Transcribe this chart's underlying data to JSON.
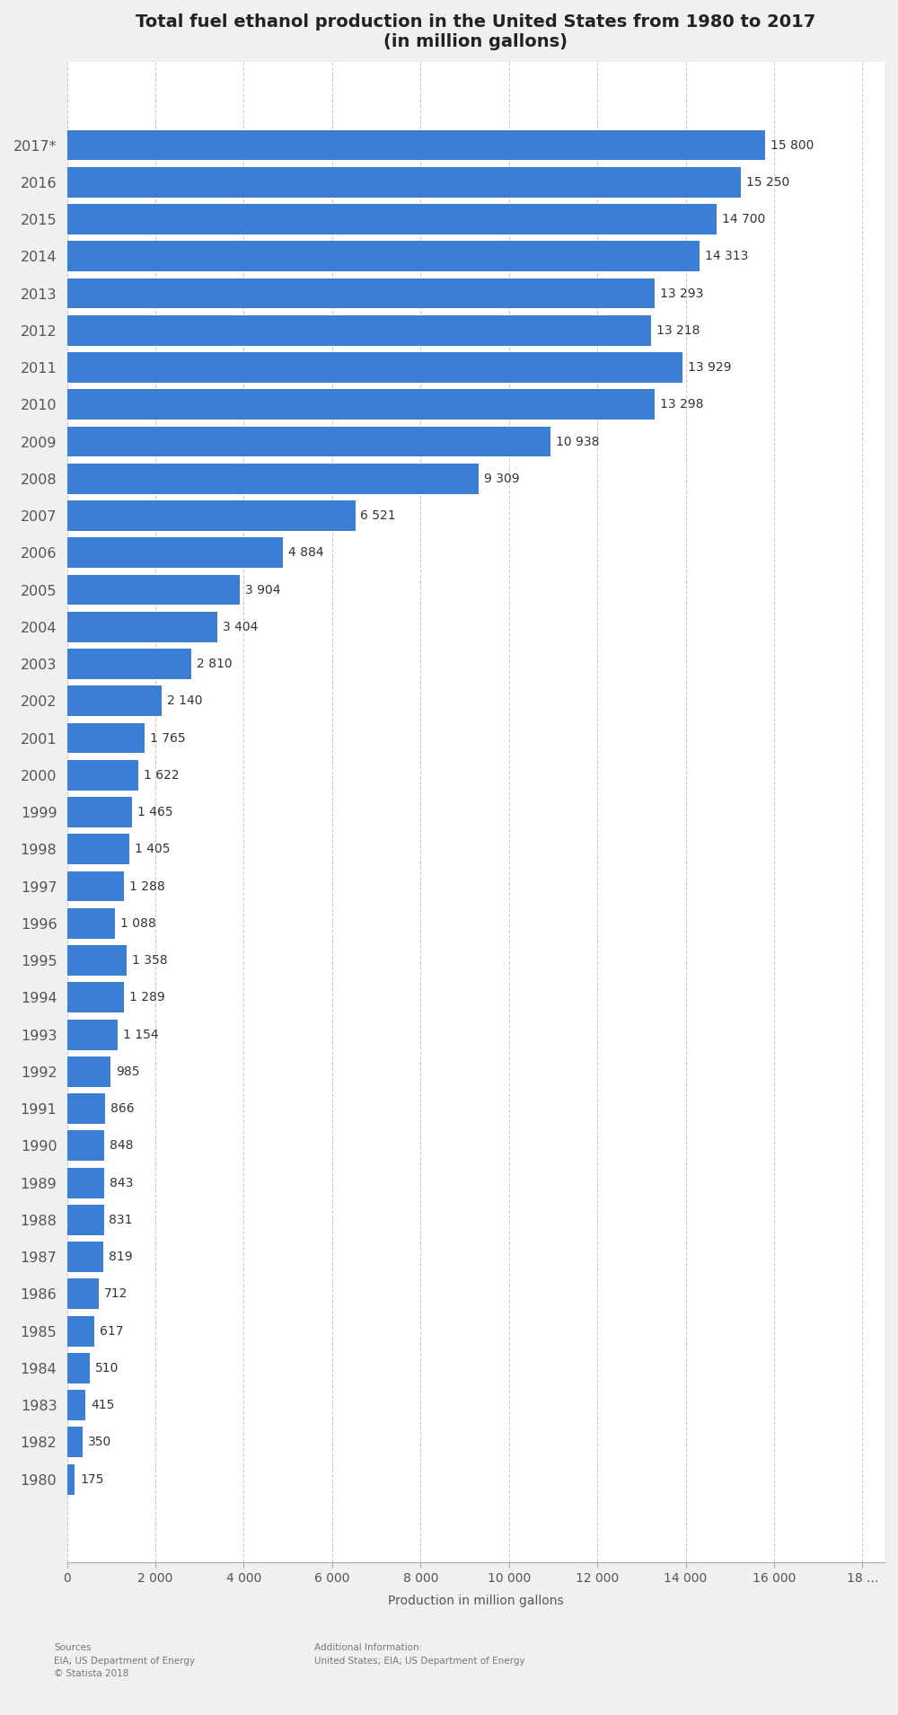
{
  "title": "Total fuel ethanol production in the United States from 1980 to 2017\n(in million gallons)",
  "xlabel": "Production in million gallons",
  "years": [
    "2017*",
    "2016",
    "2015",
    "2014",
    "2013",
    "2012",
    "2011",
    "2010",
    "2009",
    "2008",
    "2007",
    "2006",
    "2005",
    "2004",
    "2003",
    "2002",
    "2001",
    "2000",
    "1999",
    "1998",
    "1997",
    "1996",
    "1995",
    "1994",
    "1993",
    "1992",
    "1991",
    "1990",
    "1989",
    "1988",
    "1987",
    "1986",
    "1985",
    "1984",
    "1983",
    "1982",
    "1980"
  ],
  "values": [
    15800,
    15250,
    14700,
    14313,
    13293,
    13218,
    13929,
    13298,
    10938,
    9309,
    6521,
    4884,
    3904,
    3404,
    2810,
    2140,
    1765,
    1622,
    1465,
    1405,
    1288,
    1088,
    1358,
    1289,
    1154,
    985,
    866,
    848,
    843,
    831,
    819,
    712,
    617,
    510,
    415,
    350,
    175
  ],
  "bar_color": "#3a7fd5",
  "background_color": "#f0f0f0",
  "plot_background_color": "#ffffff",
  "xlim": [
    0,
    18500
  ],
  "xticks": [
    0,
    2000,
    4000,
    6000,
    8000,
    10000,
    12000,
    14000,
    16000,
    18000
  ],
  "xtick_labels": [
    "0",
    "2 000",
    "4 000",
    "6 000",
    "8 000",
    "10 000",
    "12 000",
    "14 000",
    "16 000",
    "18 ..."
  ],
  "source_text": "Sources\nEIA; US Department of Energy\n© Statista 2018",
  "additional_text": "Additional Information:\nUnited States; EIA; US Department of Energy",
  "title_fontsize": 14,
  "label_fontsize": 11.5,
  "value_fontsize": 10,
  "axis_fontsize": 10
}
